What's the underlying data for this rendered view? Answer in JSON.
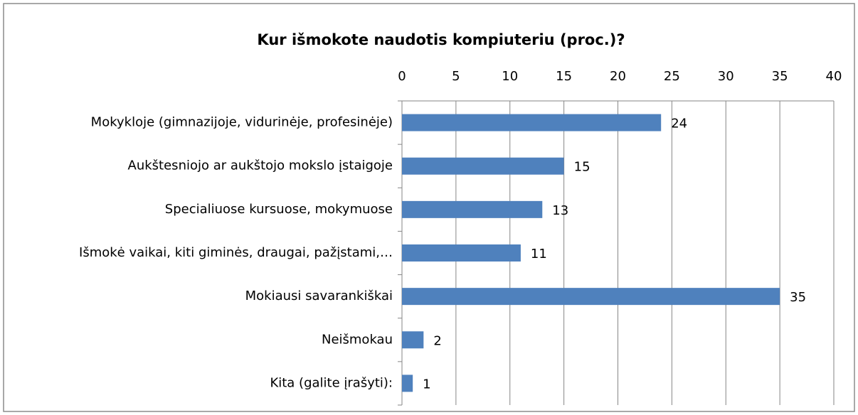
{
  "chart_data": {
    "type": "bar",
    "orientation": "horizontal",
    "title": "Kur išmokote naudotis kompiuteriu (proc.)?",
    "categories": [
      "Mokykloje (gimnazijoje, vidurinėje, profesinėje)",
      "Aukštesniojo ar aukštojo mokslo įstaigoje",
      "Specialiuose kursuose, mokymuose",
      "Išmokė vaikai, kiti giminės, draugai, pažįstami,…",
      "Mokiausi savarankiškai",
      "Neišmokau",
      "Kita (galite įrašyti):"
    ],
    "values": [
      24,
      15,
      13,
      11,
      35,
      2,
      1
    ],
    "color": "#4f81bd",
    "xlim": [
      0,
      40
    ],
    "xticks": [
      0,
      5,
      10,
      15,
      20,
      25,
      30,
      35,
      40
    ],
    "grid": true
  }
}
